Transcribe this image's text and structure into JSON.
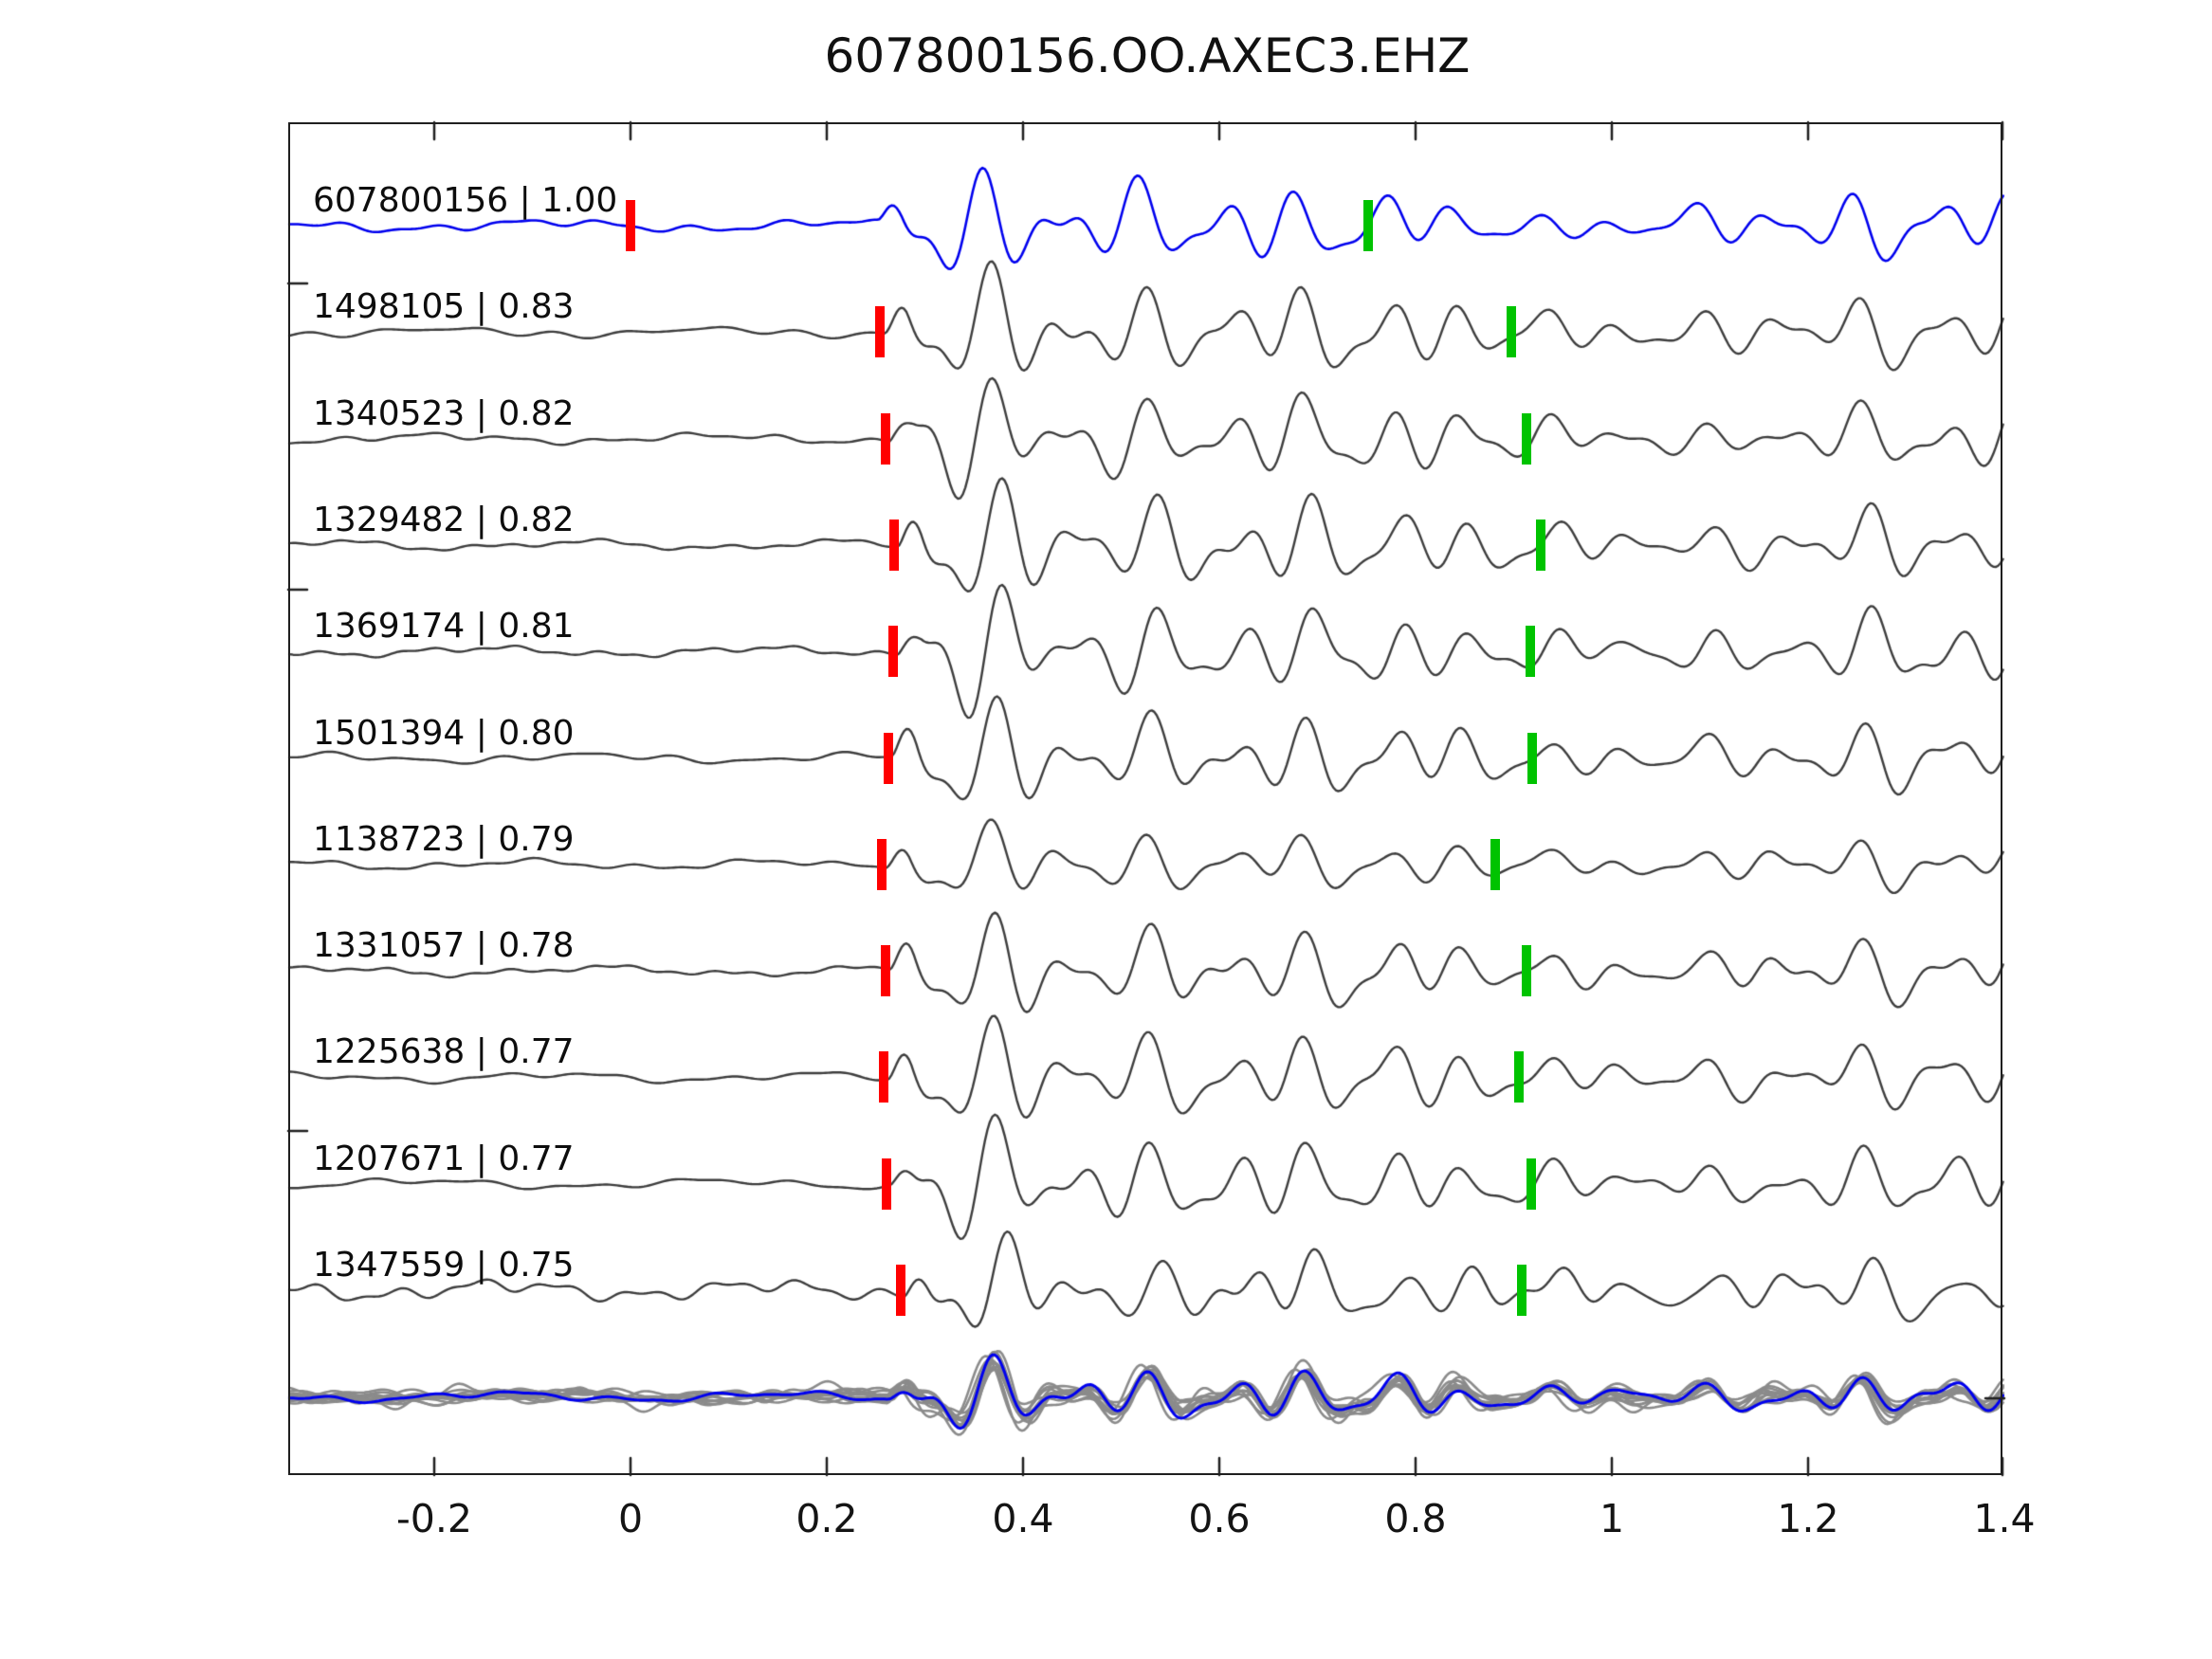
{
  "title": "607800156.OO.AXEC3.EHZ",
  "colors": {
    "template_trace": "#0000ee",
    "detection_trace": "#3d3d3d",
    "stack_member": "#8b8b8b",
    "stack_highlight": "#0000ee",
    "red_pick": "#ff0000",
    "green_pick": "#00c300",
    "axis": "#1f1f1f",
    "text": "#111111"
  },
  "x_axis": {
    "tick_labels": [
      "-0.2",
      "0",
      "0.2",
      "0.4",
      "0.6",
      "0.8",
      "1",
      "1.2",
      "1.4"
    ],
    "tick_values": [
      -0.2,
      0,
      0.2,
      0.4,
      0.6,
      0.8,
      1.0,
      1.2,
      1.4
    ]
  },
  "chart_data": {
    "type": "line",
    "kind": "seismic-waveform-template-match",
    "title": "607800156.OO.AXEC3.EHZ",
    "template_id": "607800156",
    "station_channel": "OO.AXEC3.EHZ",
    "x_range": [
      -0.3488,
      1.4
    ],
    "x_ticks": [
      -0.2,
      0,
      0.2,
      0.4,
      0.6,
      0.8,
      1.0,
      1.2,
      1.4
    ],
    "grid": false,
    "legend": false,
    "traces": [
      {
        "id": "607800156",
        "cc": "1.00",
        "label": "607800156 | 1.00",
        "role": "template",
        "red_pick": 0.0,
        "green_pick": 0.752,
        "onset": 0.253,
        "amp": 0.92,
        "noise": 5,
        "seed": 11
      },
      {
        "id": "1498105",
        "cc": "0.83",
        "label": "1498105 | 0.83",
        "role": "detection",
        "red_pick": 0.254,
        "green_pick": 0.898,
        "onset": 0.258,
        "amp": 1.05,
        "noise": 4,
        "seed": 23
      },
      {
        "id": "1340523",
        "cc": "0.82",
        "label": "1340523 | 0.82",
        "role": "detection",
        "red_pick": 0.26,
        "green_pick": 0.913,
        "onset": 0.264,
        "amp": 1.0,
        "noise": 4,
        "seed": 37
      },
      {
        "id": "1329482",
        "cc": "0.82",
        "label": "1329482 | 0.82",
        "role": "detection",
        "red_pick": 0.269,
        "green_pick": 0.928,
        "onset": 0.273,
        "amp": 1.08,
        "noise": 4,
        "seed": 41
      },
      {
        "id": "1369174",
        "cc": "0.81",
        "label": "1369174 | 0.81",
        "role": "detection",
        "red_pick": 0.268,
        "green_pick": 0.917,
        "onset": 0.272,
        "amp": 1.05,
        "noise": 4,
        "seed": 53
      },
      {
        "id": "1501394",
        "cc": "0.80",
        "label": "1501394 | 0.80",
        "role": "detection",
        "red_pick": 0.263,
        "green_pick": 0.919,
        "onset": 0.267,
        "amp": 1.0,
        "noise": 4,
        "seed": 67
      },
      {
        "id": "1138723",
        "cc": "0.79",
        "label": "1138723 | 0.79",
        "role": "detection",
        "red_pick": 0.256,
        "green_pick": 0.881,
        "onset": 0.26,
        "amp": 0.7,
        "noise": 4,
        "seed": 71
      },
      {
        "id": "1331057",
        "cc": "0.78",
        "label": "1331057 | 0.78",
        "role": "detection",
        "red_pick": 0.26,
        "green_pick": 0.913,
        "onset": 0.264,
        "amp": 0.95,
        "noise": 4,
        "seed": 83
      },
      {
        "id": "1225638",
        "cc": "0.77",
        "label": "1225638 | 0.77",
        "role": "detection",
        "red_pick": 0.258,
        "green_pick": 0.905,
        "onset": 0.262,
        "amp": 1.0,
        "noise": 4,
        "seed": 97
      },
      {
        "id": "1207671",
        "cc": "0.77",
        "label": "1207671 | 0.77",
        "role": "detection",
        "red_pick": 0.261,
        "green_pick": 0.918,
        "onset": 0.265,
        "amp": 1.0,
        "noise": 4,
        "seed": 101
      },
      {
        "id": "1347559",
        "cc": "0.75",
        "label": "1347559 | 0.75",
        "role": "detection",
        "red_pick": 0.275,
        "green_pick": 0.908,
        "onset": 0.279,
        "amp": 0.85,
        "noise": 9,
        "seed": 113
      }
    ],
    "stack": {
      "description": "overlay of aligned detections (gray) with template highlighted (blue)",
      "members": 12,
      "onset": 0.262,
      "amp": 0.58,
      "noise": 5,
      "seed": 300
    },
    "waveform_model": {
      "f1": 12.4,
      "f2": 19.2,
      "f3": 7.0,
      "p1": -0.35,
      "p2": 1.15,
      "p3": 2.7,
      "wa": 0.9,
      "wb": 2.1,
      "attack": 0.024,
      "env1_amp": 64,
      "env1_decay": 0.085,
      "env2_amp": 36,
      "env2_rise": 0.06
    }
  }
}
